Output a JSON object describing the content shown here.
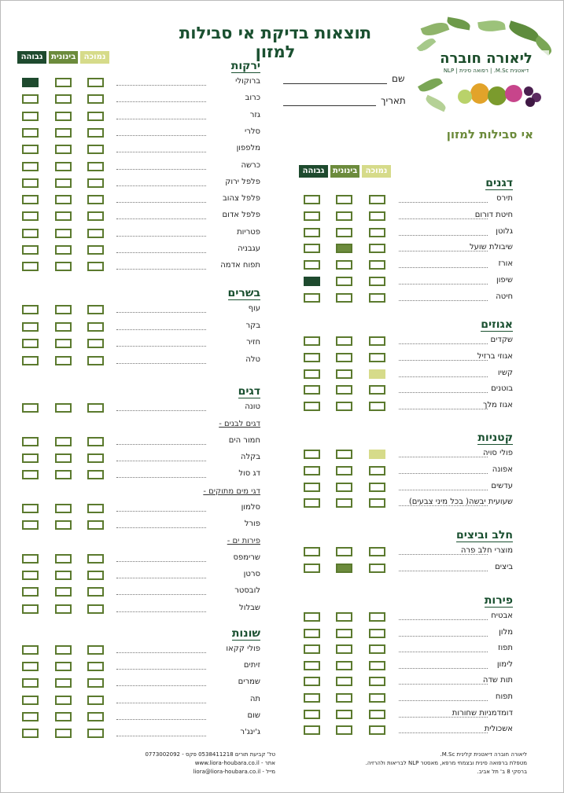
{
  "title": "תוצאות בדיקת אי סבילות למזון",
  "logo": {
    "name": "ליאורה חוברה",
    "subtitle": "דיאטנית M.Sc. | רפואה סינית | NLP",
    "tagline": "אי סבילות למזון"
  },
  "fields": {
    "name_label": "שם",
    "date_label": "תאריך"
  },
  "legend": {
    "low": "נמוכה",
    "mid": "בינונית",
    "high": "גבוהה"
  },
  "colors": {
    "high": "#1e4a2e",
    "mid": "#6c8b3c",
    "low": "#d6db8a",
    "box_border": "#5b7a2e",
    "heading": "#1a5030"
  },
  "left_column": {
    "sections": [
      {
        "title": "ירקות",
        "items": [
          {
            "label": "ברוקולי",
            "level": "high"
          },
          {
            "label": "כרוב",
            "level": ""
          },
          {
            "label": "גזר",
            "level": ""
          },
          {
            "label": "סלרי",
            "level": ""
          },
          {
            "label": "מלפפון",
            "level": ""
          },
          {
            "label": "כרשה",
            "level": ""
          },
          {
            "label": "פלפל ירוק",
            "level": ""
          },
          {
            "label": "פלפל צהוב",
            "level": ""
          },
          {
            "label": "פלפל אדום",
            "level": ""
          },
          {
            "label": "פטריות",
            "level": ""
          },
          {
            "label": "עגבניה",
            "level": ""
          },
          {
            "label": "תפוח אדמה",
            "level": ""
          }
        ]
      },
      {
        "title": "בשרים",
        "items": [
          {
            "label": "עוף",
            "level": ""
          },
          {
            "label": "בקר",
            "level": ""
          },
          {
            "label": "חזיר",
            "level": ""
          },
          {
            "label": "טלה",
            "level": ""
          }
        ]
      },
      {
        "title": "דגים",
        "items": [
          {
            "label": "טונה",
            "level": ""
          },
          {
            "subtitle": "דגים לבנים -"
          },
          {
            "label": "חמור הים",
            "level": ""
          },
          {
            "label": "בקלה",
            "level": ""
          },
          {
            "label": "דג סול",
            "level": ""
          },
          {
            "subtitle": "דגי מים מתוקים -"
          },
          {
            "label": "סלמון",
            "level": ""
          },
          {
            "label": "פורל",
            "level": ""
          },
          {
            "subtitle": "פירות ים -"
          },
          {
            "label": "שרימפס",
            "level": ""
          },
          {
            "label": "סרטן",
            "level": ""
          },
          {
            "label": "לובסטר",
            "level": ""
          },
          {
            "label": "שבלול",
            "level": ""
          }
        ]
      },
      {
        "title": "שונות",
        "items": [
          {
            "label": "פולי קקאו",
            "level": ""
          },
          {
            "label": "זיתים",
            "level": ""
          },
          {
            "label": "שמרים",
            "level": ""
          },
          {
            "label": "תה",
            "level": ""
          },
          {
            "label": "שום",
            "level": ""
          },
          {
            "label": "ג'ינג'ר",
            "level": ""
          }
        ]
      }
    ]
  },
  "right_column": {
    "sections": [
      {
        "title": "דגנים",
        "items": [
          {
            "label": "תירס",
            "level": ""
          },
          {
            "label": "חיטת דורום",
            "level": ""
          },
          {
            "label": "גלוטן",
            "level": ""
          },
          {
            "label": "שיבולת שועל",
            "level": "mid"
          },
          {
            "label": "אורז",
            "level": ""
          },
          {
            "label": "שיפון",
            "level": "high"
          },
          {
            "label": "חיטה",
            "level": ""
          }
        ]
      },
      {
        "title": "אגוזים",
        "items": [
          {
            "label": "שקדים",
            "level": ""
          },
          {
            "label": "אגוזי ברזיל",
            "level": ""
          },
          {
            "label": "קשיו",
            "level": "low"
          },
          {
            "label": "בוטנים",
            "level": ""
          },
          {
            "label": "אגוז מלך",
            "level": ""
          }
        ]
      },
      {
        "title": "קטניות",
        "items": [
          {
            "label": "פולי סויה",
            "level": "low"
          },
          {
            "label": "אפונה",
            "level": ""
          },
          {
            "label": "עדשים",
            "level": ""
          },
          {
            "label": "שעועית יבשה( בכל מיני צבעים)",
            "level": ""
          }
        ]
      },
      {
        "title": "חלב וביצים",
        "items": [
          {
            "label": "מוצרי חלב פרה",
            "level": ""
          },
          {
            "label": "ביצים",
            "level": "mid"
          }
        ]
      },
      {
        "title": "פירות",
        "items": [
          {
            "label": "אבטיח",
            "level": ""
          },
          {
            "label": "מלון",
            "level": ""
          },
          {
            "label": "תפוז",
            "level": ""
          },
          {
            "label": "לימון",
            "level": ""
          },
          {
            "label": "תות שדה",
            "level": ""
          },
          {
            "label": "תפוח",
            "level": ""
          },
          {
            "label": "דומדמניות שחורות",
            "level": ""
          },
          {
            "label": "אשכולית",
            "level": ""
          }
        ]
      }
    ]
  },
  "footer_left": [
    "טל' קביעת תורים 0538411218 פקס - 0773002092",
    "אתר - www.liora-houbara.co.il",
    "מייל - liora@liora-houbara.co.il"
  ],
  "footer_right": [
    "ליאורה חוברה דיאטנית קלינית M.Sc.",
    "מטפלת ברפואה סינית ובצמחי מרפא, מאסטר NLP לבריאות ולהרזיה.",
    "ברסקי 8 ב' תל אביב."
  ]
}
